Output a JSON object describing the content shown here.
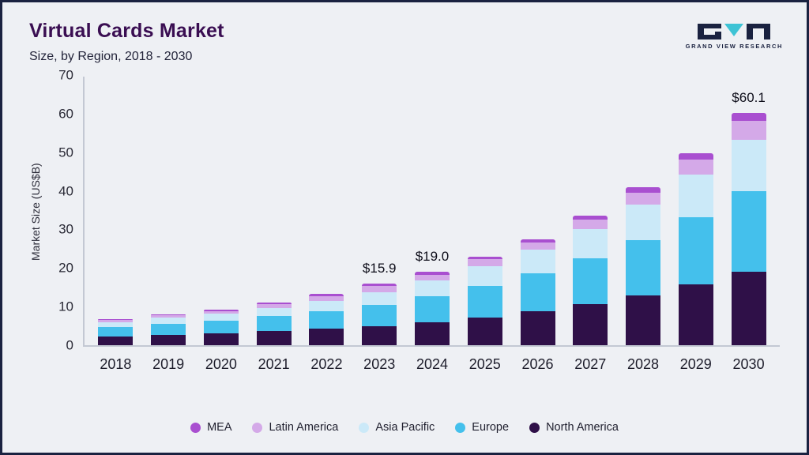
{
  "header": {
    "title": "Virtual Cards Market",
    "subtitle": "Size, by Region, 2018 - 2030",
    "logo_text": "GRAND VIEW RESEARCH"
  },
  "chart_data": {
    "type": "bar",
    "stacked": true,
    "title": "Virtual Cards Market Size, by Region, 2018 - 2030",
    "xlabel": "",
    "ylabel": "Market Size (US$B)",
    "ylim": [
      0,
      70
    ],
    "yticks": [
      0,
      10,
      20,
      30,
      40,
      50,
      60,
      70
    ],
    "grid": false,
    "legend_position": "bottom",
    "categories": [
      "2018",
      "2019",
      "2020",
      "2021",
      "2022",
      "2023",
      "2024",
      "2025",
      "2026",
      "2027",
      "2028",
      "2029",
      "2030"
    ],
    "series": [
      {
        "name": "North America",
        "color": "#2f1048",
        "values": [
          2.2,
          2.7,
          3.1,
          3.6,
          4.2,
          4.9,
          5.9,
          7.1,
          8.8,
          10.7,
          12.9,
          15.8,
          19.0
        ]
      },
      {
        "name": "Europe",
        "color": "#44c0ec",
        "values": [
          2.5,
          2.9,
          3.3,
          3.9,
          4.6,
          5.5,
          6.7,
          8.2,
          9.9,
          11.9,
          14.3,
          17.3,
          20.9
        ]
      },
      {
        "name": "Asia Pacific",
        "color": "#cbe9f8",
        "values": [
          1.3,
          1.5,
          1.8,
          2.2,
          2.7,
          3.4,
          4.1,
          5.1,
          6.0,
          7.5,
          9.3,
          11.1,
          13.4
        ]
      },
      {
        "name": "Latin America",
        "color": "#d4a9e8",
        "values": [
          0.5,
          0.6,
          0.7,
          0.9,
          1.2,
          1.5,
          1.6,
          1.9,
          2.0,
          2.4,
          3.1,
          4.0,
          4.8
        ]
      },
      {
        "name": "MEA",
        "color": "#a94fd0",
        "values": [
          0.3,
          0.3,
          0.4,
          0.4,
          0.6,
          0.6,
          0.7,
          0.7,
          0.8,
          1.0,
          1.4,
          1.6,
          2.0
        ]
      }
    ],
    "annotations": [
      {
        "category": "2023",
        "text": "$15.9"
      },
      {
        "category": "2024",
        "text": "$19.0"
      },
      {
        "category": "2030",
        "text": "$60.1"
      }
    ],
    "legend": [
      "MEA",
      "Latin America",
      "Asia Pacific",
      "Europe",
      "North America"
    ]
  }
}
